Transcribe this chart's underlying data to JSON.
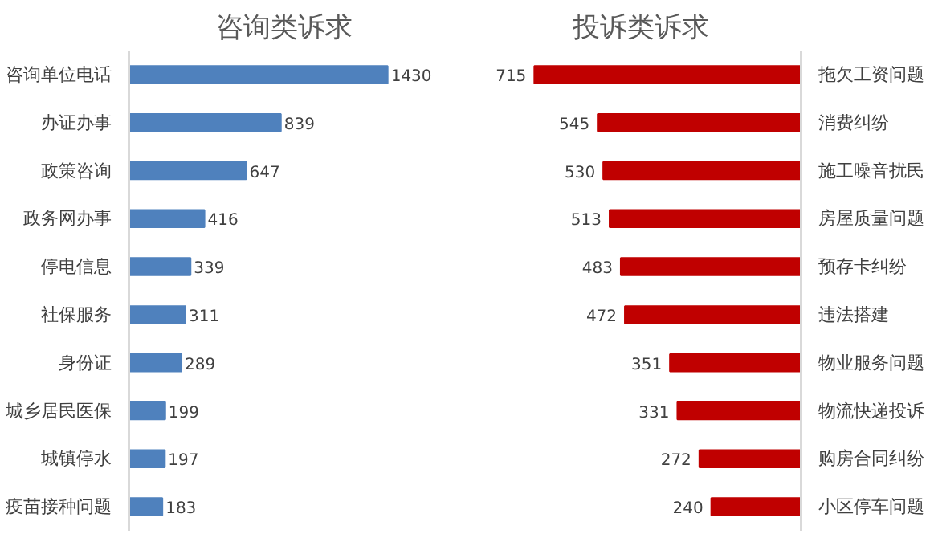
{
  "chart_data": [
    {
      "type": "bar",
      "orientation": "horizontal",
      "title": "咨询类诉求",
      "categories": [
        "咨询单位电话",
        "办证办事",
        "政策咨询",
        "政务网办事",
        "停电信息",
        "社保服务",
        "身份证",
        "城乡居民医保",
        "城镇停水",
        "疫苗接种问题"
      ],
      "values": [
        1430,
        839,
        647,
        416,
        339,
        311,
        289,
        199,
        197,
        183
      ],
      "color": "#4f81bd",
      "data_labels": true,
      "tick_labels": "y"
    },
    {
      "type": "bar",
      "orientation": "horizontal",
      "title": "投诉类诉求",
      "categories": [
        "拖欠工资问题",
        "消费纠纷",
        "施工噪音扰民",
        "房屋质量问题",
        "预存卡纠纷",
        "违法搭建",
        "物业服务问题",
        "物流快递投诉",
        "购房合同纠纷",
        "小区停车问题"
      ],
      "values": [
        715,
        545,
        530,
        513,
        483,
        472,
        351,
        331,
        272,
        240
      ],
      "color": "#c00000",
      "data_labels": true,
      "tick_labels": "y"
    }
  ]
}
